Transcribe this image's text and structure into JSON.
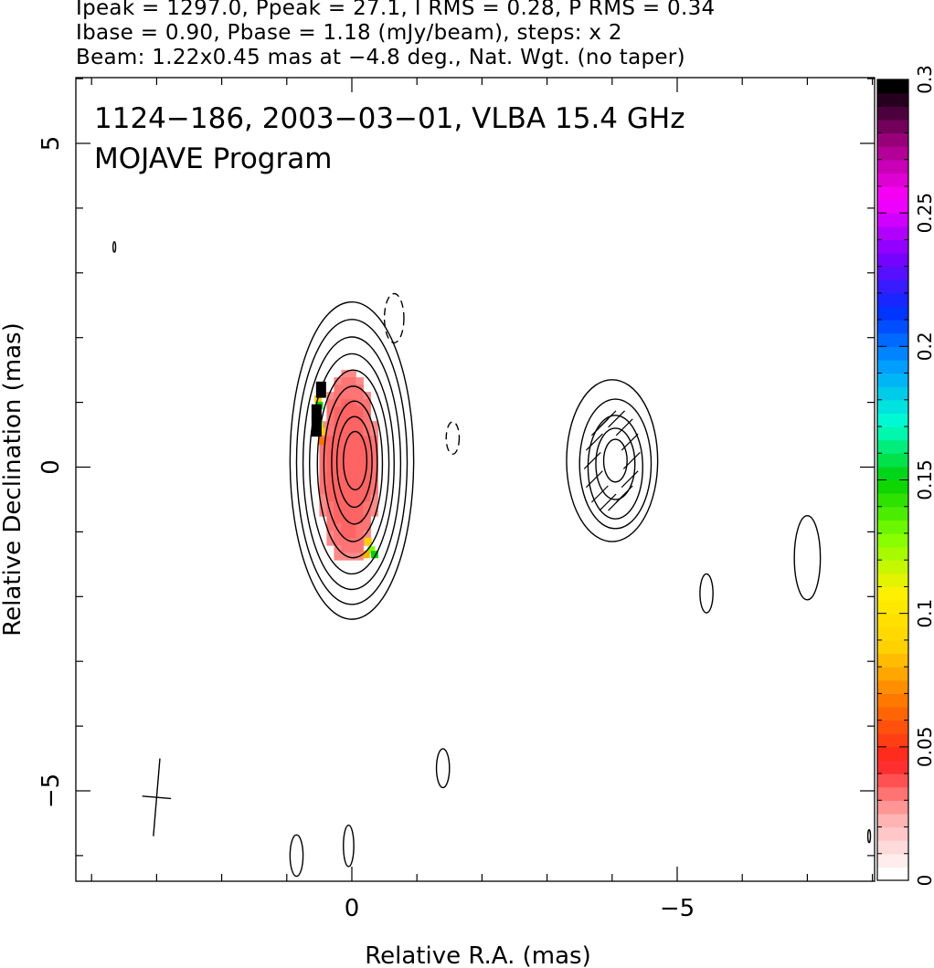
{
  "header": {
    "line1": "Ipeak = 1297.0, Ppeak = 27.1, I RMS = 0.28, P RMS = 0.34",
    "line2": "Ibase = 0.90, Pbase = 1.18 (mJy/beam), steps: x 2",
    "line3": "Beam: 1.22x0.45 mas at −4.8 deg., Nat. Wgt. (no taper)"
  },
  "chart_data": {
    "type": "heatmap",
    "title": "1124−186, 2003−03−01, VLBA 15.4 GHz",
    "subtitle": "MOJAVE Program",
    "xlabel": "Relative R.A. (mas)",
    "ylabel": "Relative Declination (mas)",
    "xlim": [
      4,
      -8
    ],
    "ylim": [
      -6.3,
      6
    ],
    "x_ticks": [
      0,
      -5
    ],
    "x_tick_labels": [
      "0",
      "−5"
    ],
    "y_ticks": [
      5,
      0,
      -5
    ],
    "y_tick_labels": [
      "5",
      "0",
      "−5"
    ],
    "colorbar": {
      "range": [
        0,
        0.3
      ],
      "ticks": [
        0,
        0.05,
        0.1,
        0.15,
        0.2,
        0.25,
        0.3
      ],
      "tick_labels": [
        "0",
        "0.05",
        "0.1",
        "0.15",
        "0.2",
        "0.25",
        "0.3"
      ],
      "colors": [
        "#ffffff",
        "#ffb0b0",
        "#ff2020",
        "#ff7000",
        "#ffd000",
        "#fff000",
        "#80ff00",
        "#00d000",
        "#00ffd0",
        "#00a0ff",
        "#0030ff",
        "#8000ff",
        "#ff00ff",
        "#a00080",
        "#000000"
      ]
    },
    "core_contours": [
      {
        "x": 0.0,
        "y": 0.1,
        "rx": 0.95,
        "ry": 2.45
      },
      {
        "x": 0.0,
        "y": 0.08,
        "rx": 0.85,
        "ry": 2.2
      },
      {
        "x": 0.0,
        "y": 0.06,
        "rx": 0.75,
        "ry": 1.95
      },
      {
        "x": 0.0,
        "y": 0.05,
        "rx": 0.65,
        "ry": 1.7
      },
      {
        "x": -0.02,
        "y": 0.05,
        "rx": 0.55,
        "ry": 1.45
      },
      {
        "x": -0.02,
        "y": 0.05,
        "rx": 0.45,
        "ry": 1.2
      },
      {
        "x": -0.04,
        "y": 0.07,
        "rx": 0.35,
        "ry": 0.95
      },
      {
        "x": -0.04,
        "y": 0.08,
        "rx": 0.27,
        "ry": 0.7
      },
      {
        "x": -0.05,
        "y": 0.1,
        "rx": 0.18,
        "ry": 0.45
      }
    ],
    "jet_contours": [
      {
        "x": -4.0,
        "y": 0.1,
        "rx": 0.7,
        "ry": 1.25
      },
      {
        "x": -4.05,
        "y": 0.05,
        "rx": 0.55,
        "ry": 1.0
      },
      {
        "x": -4.05,
        "y": 0.0,
        "rx": 0.42,
        "ry": 0.8
      },
      {
        "x": -4.05,
        "y": 0.05,
        "rx": 0.3,
        "ry": 0.55
      },
      {
        "x": -4.05,
        "y": 0.1,
        "rx": 0.18,
        "ry": 0.33
      }
    ],
    "small_features": [
      {
        "x": -0.65,
        "y": 2.3,
        "rx": 0.15,
        "ry": 0.38,
        "dashed": true
      },
      {
        "x": -1.55,
        "y": 0.45,
        "rx": 0.1,
        "ry": 0.25,
        "dashed": true
      },
      {
        "x": -5.45,
        "y": -1.95,
        "rx": 0.1,
        "ry": 0.3,
        "dashed": false
      },
      {
        "x": -7.0,
        "y": -1.4,
        "rx": 0.2,
        "ry": 0.65,
        "dashed": false
      },
      {
        "x": -1.4,
        "y": -4.65,
        "rx": 0.1,
        "ry": 0.3,
        "dashed": false
      },
      {
        "x": 0.85,
        "y": -6.0,
        "rx": 0.1,
        "ry": 0.32,
        "dashed": false
      },
      {
        "x": 0.05,
        "y": -5.85,
        "rx": 0.08,
        "ry": 0.32,
        "dashed": false
      },
      {
        "x": 3.65,
        "y": 3.4,
        "rx": 0.02,
        "ry": 0.08,
        "dashed": false
      },
      {
        "x": -7.95,
        "y": -5.7,
        "rx": 0.02,
        "ry": 0.1,
        "dashed": false
      }
    ],
    "polarization_fraction_region": {
      "x": 0.05,
      "y": 0.0,
      "rx": 0.45,
      "ry": 1.5,
      "typical_value": 0.03
    },
    "beam": {
      "x": 3.0,
      "y": -5.1,
      "major_mas": 1.22,
      "minor_mas": 0.45,
      "pa_deg": -4.8
    }
  }
}
